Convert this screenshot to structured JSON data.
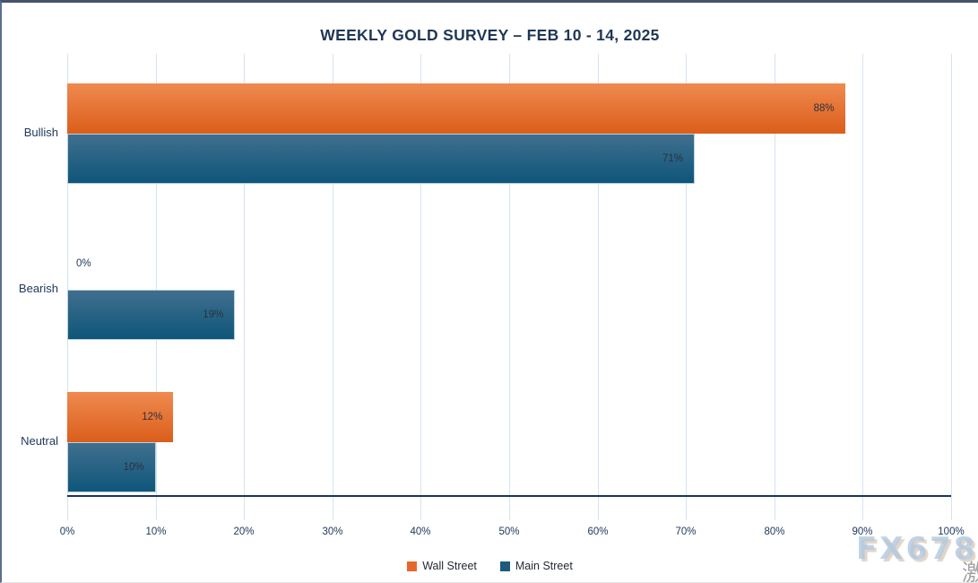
{
  "title": "WEEKLY GOLD SURVEY – FEB 10 - 14, 2025",
  "chart_data": {
    "type": "bar",
    "orientation": "horizontal",
    "title": "WEEKLY GOLD SURVEY – FEB 10 - 14, 2025",
    "categories": [
      "Bullish",
      "Bearish",
      "Neutral"
    ],
    "series": [
      {
        "name": "Wall Street",
        "color": "#E8662A",
        "gradient": [
          "#EF8A50",
          "#DB5E1B"
        ],
        "values": [
          88,
          0,
          12
        ]
      },
      {
        "name": "Main Street",
        "color": "#1C5A7E",
        "gradient": [
          "#416F8E",
          "#0E567A"
        ],
        "values": [
          71,
          19,
          10
        ]
      }
    ],
    "value_suffix": "%",
    "data_labels": [
      [
        "88%",
        "0%",
        "12%"
      ],
      [
        "71%",
        "19%",
        "10%"
      ]
    ],
    "xlim": [
      0,
      100
    ],
    "x_ticks": [
      "0%",
      "10%",
      "20%",
      "30%",
      "40%",
      "50%",
      "60%",
      "70%",
      "80%",
      "90%",
      "100%"
    ],
    "grid": "vertical",
    "legend_position": "bottom",
    "colors": {
      "grid": "#D5E3F2",
      "axis_line": "#17365D",
      "title_text": "#1F3756",
      "axis_text": "#203A5C",
      "data_label_text": "#29323C"
    }
  },
  "watermark": {
    "text": "FX678",
    "cjk": "激"
  }
}
